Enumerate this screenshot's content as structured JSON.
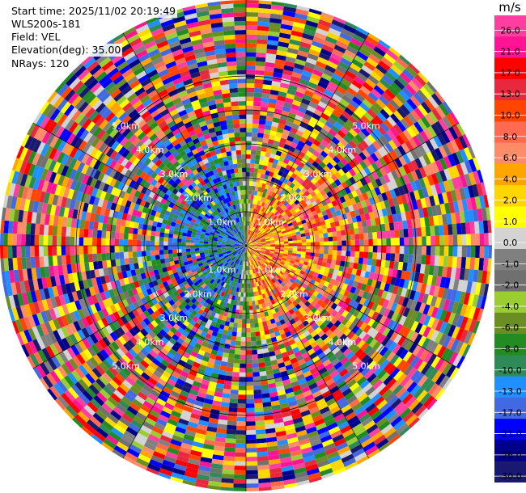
{
  "header": {
    "start_time": "Start time: 2025/11/02 20:19:49",
    "instrument": "WLS200s-181",
    "field": "Field: VEL",
    "elevation": "Elevation(deg): 35.00",
    "nrays": "NRays: 120"
  },
  "colorbar": {
    "unit": "m/s",
    "ticks": [
      "26.0",
      "21.0",
      "17.0",
      "13.0",
      "10.0",
      "8.0",
      "6.0",
      "4.0",
      "2.0",
      "1.0",
      "0.0",
      "-1.0",
      "-2.0",
      "-4.0",
      "-6.0",
      "-8.0",
      "-10.0",
      "-13.0",
      "-17.0",
      "-21.0",
      "-26.0",
      "-30.0"
    ],
    "colors": [
      "#ff3fa0",
      "#ff1493",
      "#ff0000",
      "#e8283c",
      "#ff4500",
      "#ff6a50",
      "#ff8c69",
      "#ffa500",
      "#ffd700",
      "#ffff00",
      "#d3d3d3",
      "#808080",
      "#707070",
      "#9acd32",
      "#6b8e23",
      "#228b22",
      "#2e8b57",
      "#1e90ff",
      "#4169e1",
      "#0000ff",
      "#00008b",
      "#191970"
    ]
  },
  "chart_data": {
    "type": "heatmap",
    "subtype": "ppi",
    "field": "VEL",
    "nrays": 120,
    "range_rings_km": [
      1.0,
      2.0,
      3.0,
      4.0,
      5.0
    ],
    "range_labels": [
      "1.0km",
      "2.0km",
      "3.0km",
      "4.0km",
      "5.0km"
    ],
    "value_range": [
      -30.0,
      26.0
    ],
    "pattern": {
      "near_range_east": "positive velocities (oranges/yellows)",
      "near_range_west": "negative velocities (blues)",
      "far_range": "noisy, full palette"
    }
  }
}
